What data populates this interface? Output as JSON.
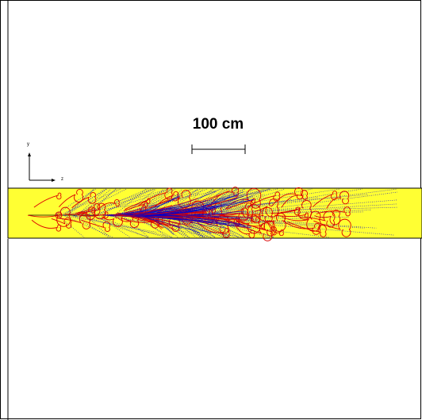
{
  "scale_bar": {
    "label": "100 cm"
  },
  "axes": {
    "vertical": "y",
    "horizontal": "z"
  },
  "colors": {
    "detector": "#ffff33",
    "charged_track": "#dd0000",
    "neutral_track": "#0000cc",
    "outline": "#000000"
  }
}
